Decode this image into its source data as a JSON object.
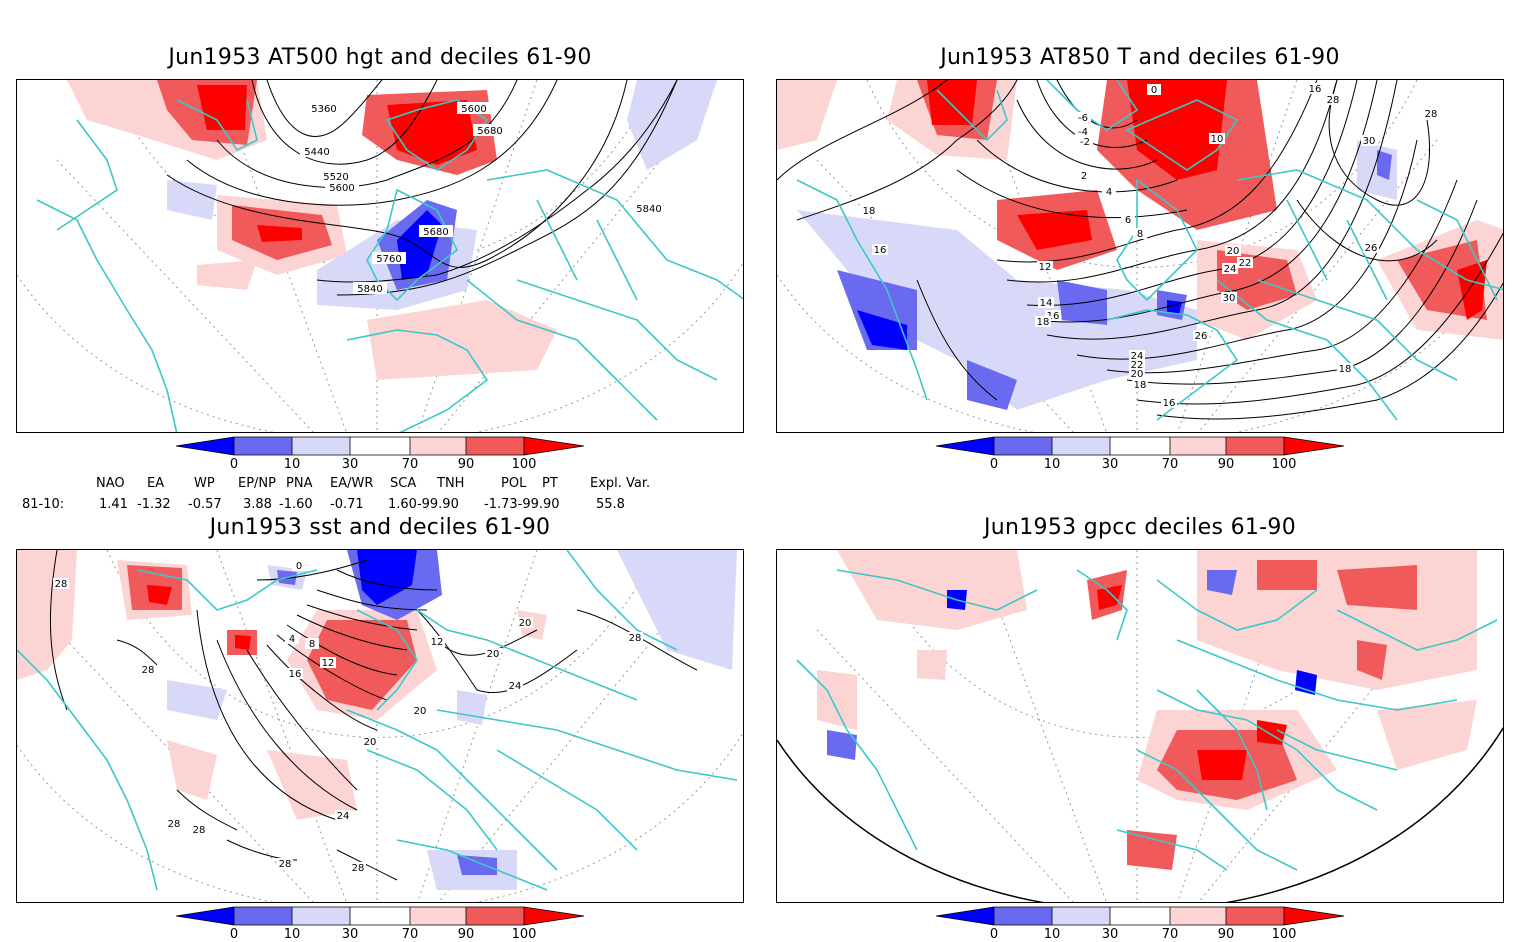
{
  "panels": [
    {
      "title": "Jun1953 AT500 hgt and deciles 61-90",
      "contour_labels": [
        "5360",
        "5440",
        "5520",
        "5600",
        "5600",
        "5680",
        "5680",
        "5760",
        "5840",
        "5840"
      ]
    },
    {
      "title": "Jun1953 AT850 T and deciles 61-90",
      "contour_labels": [
        "0",
        "-6",
        "-4",
        "-2",
        "2",
        "4",
        "6",
        "8",
        "10",
        "12",
        "14",
        "16",
        "18",
        "18",
        "20",
        "22",
        "24",
        "26",
        "28",
        "30",
        "16",
        "18",
        "16",
        "24",
        "22",
        "20",
        "18",
        "16",
        "26",
        "28",
        "30"
      ]
    },
    {
      "title": "Jun1953 sst and deciles 61-90",
      "contour_labels": [
        "0",
        "4",
        "8",
        "12",
        "16",
        "20",
        "24",
        "28",
        "28",
        "28",
        "28",
        "12",
        "20",
        "24",
        "20",
        "28",
        "28",
        "20",
        "28"
      ]
    },
    {
      "title": "Jun1953 gpcc deciles 61-90",
      "contour_labels": []
    }
  ],
  "colorbar": {
    "ticks": [
      "0",
      "10",
      "30",
      "70",
      "90",
      "100"
    ],
    "colors": [
      "#0000ff",
      "#6a6af0",
      "#d8d8f8",
      "#ffffff",
      "#fcd4d4",
      "#f05a5a",
      "#ff0000"
    ]
  },
  "indices": {
    "headers": [
      "NAO",
      "EA",
      "WP",
      "EP/NP",
      "PNA",
      "EA/WR",
      "SCA",
      "TNH",
      "POL",
      "PT",
      "Expl. Var."
    ],
    "row_label": "81-10:",
    "values": [
      "1.41",
      "-1.32",
      "-0.57",
      "3.88",
      "-1.60",
      "-0.71",
      "1.60-99.90",
      "-1.73-99.90",
      "55.8"
    ]
  }
}
